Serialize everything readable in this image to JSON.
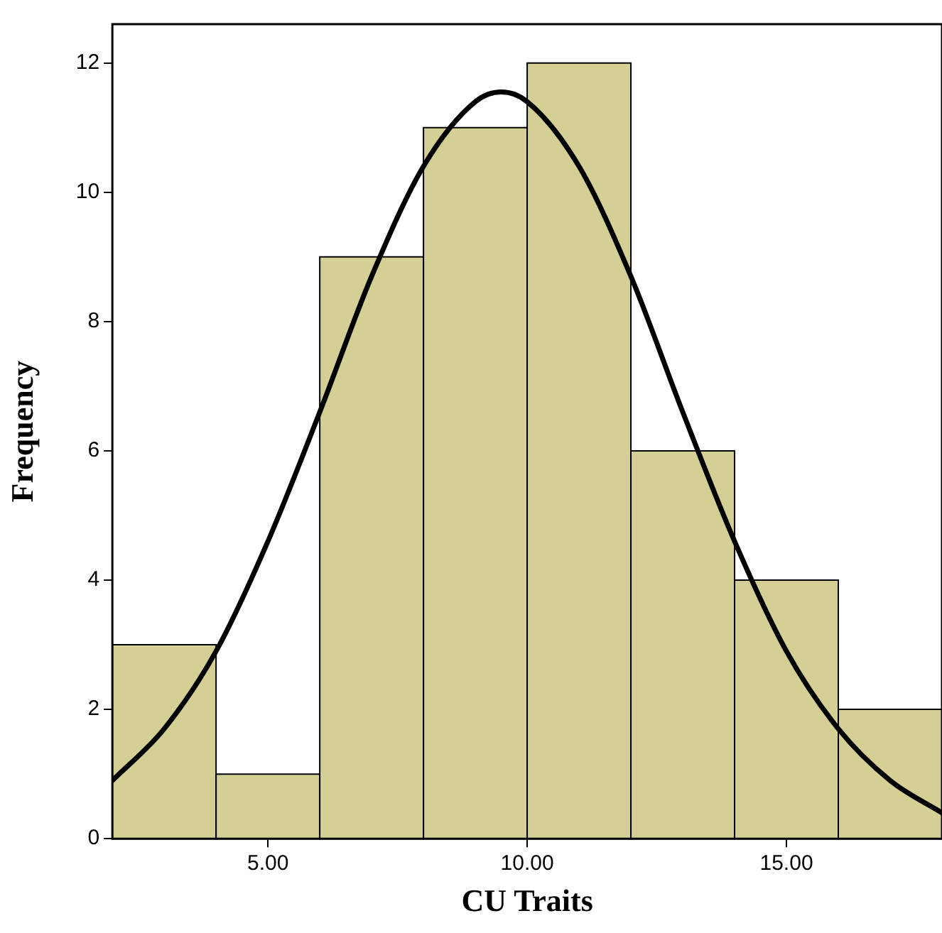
{
  "chart_data": {
    "type": "histogram",
    "xlabel": "CU Traits",
    "ylabel": "Frequency",
    "bins": [
      2,
      4,
      6,
      8,
      10,
      12,
      14,
      16,
      18
    ],
    "values": [
      3,
      1,
      9,
      11,
      12,
      6,
      4,
      2
    ],
    "color": "#d3cf95",
    "xlim": [
      2,
      18
    ],
    "xticks": [
      {
        "value": 5,
        "label": "5.00"
      },
      {
        "value": 10,
        "label": "10.00"
      },
      {
        "value": 15,
        "label": "15.00"
      }
    ],
    "ylim": [
      0,
      12.6
    ],
    "yticks": [
      0,
      2,
      4,
      6,
      8,
      10,
      12
    ],
    "grid": false,
    "legend": false,
    "series": [
      {
        "type": "line",
        "color": "#000000",
        "marker": "none",
        "line_style": "solid",
        "x": [
          2,
          3,
          4,
          5,
          6,
          7,
          8,
          9,
          9.5,
          10,
          11,
          12,
          13,
          14,
          15,
          16,
          17,
          18
        ],
        "values": [
          0.9,
          1.7,
          2.9,
          4.6,
          6.6,
          8.7,
          10.4,
          11.4,
          11.55,
          11.4,
          10.4,
          8.7,
          6.6,
          4.6,
          2.9,
          1.7,
          0.9,
          0.4
        ]
      }
    ]
  }
}
